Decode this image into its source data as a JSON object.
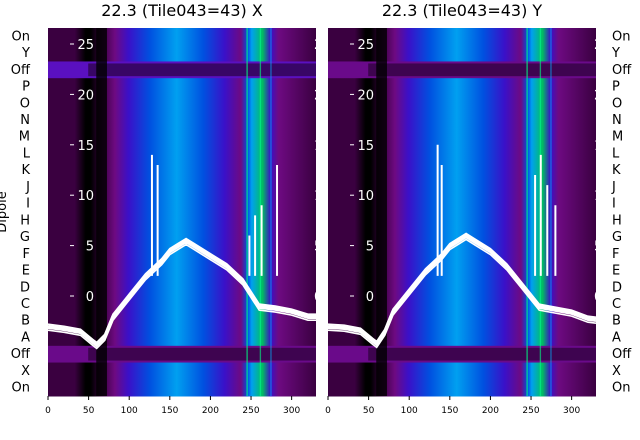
{
  "chart_data": [
    {
      "type": "heatmap",
      "title": "22.3 (Tile043=43) X",
      "ylabel": "Dipole",
      "row_labels": [
        "On",
        "Y",
        "Off",
        "P",
        "O",
        "N",
        "M",
        "L",
        "K",
        "J",
        "I",
        "H",
        "G",
        "F",
        "E",
        "D",
        "C",
        "B",
        "A",
        "Off",
        "X",
        "On"
      ],
      "x_ticks": [
        0,
        50,
        100,
        150,
        200,
        250,
        300
      ],
      "xlim": [
        0,
        330
      ],
      "inner_y_ticks": [
        25,
        20,
        15,
        10,
        5,
        0
      ],
      "inner_ylim": [
        -3,
        28
      ],
      "colormap": [
        "#000000",
        "#3a0040",
        "#6e0a82",
        "#3b10c8",
        "#0050e0",
        "#00a0f0",
        "#00c060"
      ],
      "overlay_series": [
        {
          "x": [
            0,
            20,
            40,
            55,
            60,
            70,
            80,
            100,
            120,
            140,
            150,
            160,
            170,
            180,
            200,
            220,
            240,
            260,
            280,
            300,
            320,
            330
          ],
          "y": [
            -3,
            -3.2,
            -3.5,
            -4.5,
            -4.8,
            -4,
            -2,
            0,
            2,
            3.5,
            4.5,
            5,
            5.5,
            5,
            4,
            3,
            1.5,
            -1,
            -1.2,
            -1.5,
            -2,
            -2
          ]
        }
      ],
      "spikes": [
        {
          "x": 128,
          "y": 14
        },
        {
          "x": 135,
          "y": 13
        },
        {
          "x": 248,
          "y": 6
        },
        {
          "x": 255,
          "y": 8
        },
        {
          "x": 263,
          "y": 9
        },
        {
          "x": 282,
          "y": 13
        }
      ]
    },
    {
      "type": "heatmap",
      "title": "22.3 (Tile043=43) Y",
      "ylabel": "",
      "row_labels": [
        "On",
        "Y",
        "Off",
        "P",
        "O",
        "N",
        "M",
        "L",
        "K",
        "J",
        "I",
        "H",
        "G",
        "F",
        "E",
        "D",
        "C",
        "B",
        "A",
        "Off",
        "X",
        "On"
      ],
      "x_ticks": [
        0,
        50,
        100,
        150,
        200,
        250,
        300
      ],
      "xlim": [
        0,
        330
      ],
      "inner_y_ticks": [
        25,
        20,
        15,
        10,
        5,
        0
      ],
      "inner_ylim": [
        -3,
        28
      ],
      "colormap": [
        "#000000",
        "#3a0040",
        "#6e0a82",
        "#3b10c8",
        "#0050e0",
        "#00a0f0",
        "#00c060"
      ],
      "overlay_series": [
        {
          "x": [
            0,
            20,
            40,
            55,
            60,
            70,
            80,
            100,
            120,
            140,
            150,
            160,
            170,
            180,
            200,
            220,
            240,
            260,
            280,
            300,
            320,
            330
          ],
          "y": [
            -3,
            -3.1,
            -3.4,
            -4.4,
            -4.7,
            -3.5,
            -1.5,
            0.5,
            2.5,
            4,
            5,
            5.5,
            6,
            5.5,
            4.5,
            3,
            1,
            -1,
            -1.3,
            -1.6,
            -2.2,
            -2.3
          ]
        }
      ],
      "spikes": [
        {
          "x": 135,
          "y": 15
        },
        {
          "x": 140,
          "y": 13
        },
        {
          "x": 255,
          "y": 12
        },
        {
          "x": 262,
          "y": 14
        },
        {
          "x": 270,
          "y": 11
        },
        {
          "x": 280,
          "y": 9
        }
      ]
    }
  ]
}
